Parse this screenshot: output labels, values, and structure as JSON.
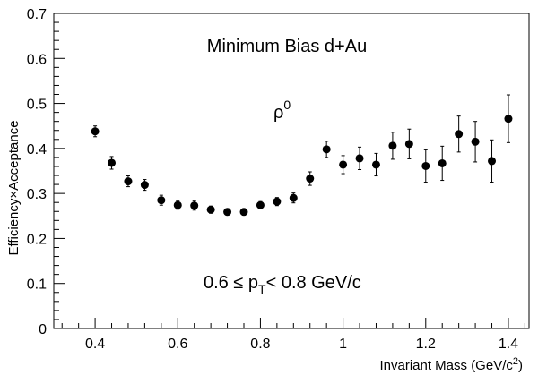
{
  "chart_data": {
    "type": "scatter",
    "xlabel": "Invariant Mass (GeV/c²)",
    "xlabel_main": "Invariant Mass (GeV/c",
    "xlabel_sup": "2",
    "xlabel_end": ")",
    "ylabel": "Efficiency×Acceptance",
    "xlim": [
      0.3,
      1.45
    ],
    "ylim": [
      0,
      0.7
    ],
    "x_ticks": [
      0.4,
      0.6,
      0.8,
      1.0,
      1.2,
      1.4
    ],
    "x_tick_labels": [
      "0.4",
      "0.6",
      "0.8",
      "1",
      "1.2",
      "1.4"
    ],
    "y_ticks": [
      0,
      0.1,
      0.2,
      0.3,
      0.4,
      0.5,
      0.6,
      0.7
    ],
    "y_tick_labels": [
      "0",
      "0.1",
      "0.2",
      "0.3",
      "0.4",
      "0.5",
      "0.6",
      "0.7"
    ],
    "grid": false,
    "annotations": {
      "title": "Minimum Bias d+Au",
      "particle": "ρ",
      "particle_sup": "0",
      "pt_a": "0.6 ≤ p",
      "pt_sub": "T",
      "pt_b": "< 0.8 GeV/c"
    },
    "points": [
      {
        "x": 0.4,
        "y": 0.438,
        "err": 0.012
      },
      {
        "x": 0.44,
        "y": 0.368,
        "err": 0.014
      },
      {
        "x": 0.48,
        "y": 0.327,
        "err": 0.012
      },
      {
        "x": 0.52,
        "y": 0.319,
        "err": 0.012
      },
      {
        "x": 0.56,
        "y": 0.285,
        "err": 0.011
      },
      {
        "x": 0.6,
        "y": 0.274,
        "err": 0.009
      },
      {
        "x": 0.64,
        "y": 0.273,
        "err": 0.01
      },
      {
        "x": 0.68,
        "y": 0.264,
        "err": 0.008
      },
      {
        "x": 0.72,
        "y": 0.259,
        "err": 0.007
      },
      {
        "x": 0.76,
        "y": 0.259,
        "err": 0.007
      },
      {
        "x": 0.8,
        "y": 0.274,
        "err": 0.008
      },
      {
        "x": 0.84,
        "y": 0.282,
        "err": 0.009
      },
      {
        "x": 0.88,
        "y": 0.29,
        "err": 0.011
      },
      {
        "x": 0.92,
        "y": 0.333,
        "err": 0.015
      },
      {
        "x": 0.96,
        "y": 0.398,
        "err": 0.018
      },
      {
        "x": 1.0,
        "y": 0.364,
        "err": 0.02
      },
      {
        "x": 1.04,
        "y": 0.378,
        "err": 0.025
      },
      {
        "x": 1.08,
        "y": 0.364,
        "err": 0.025
      },
      {
        "x": 1.12,
        "y": 0.406,
        "err": 0.03
      },
      {
        "x": 1.16,
        "y": 0.41,
        "err": 0.033
      },
      {
        "x": 1.2,
        "y": 0.361,
        "err": 0.036
      },
      {
        "x": 1.24,
        "y": 0.367,
        "err": 0.038
      },
      {
        "x": 1.28,
        "y": 0.432,
        "err": 0.04
      },
      {
        "x": 1.32,
        "y": 0.415,
        "err": 0.045
      },
      {
        "x": 1.36,
        "y": 0.372,
        "err": 0.047
      },
      {
        "x": 1.4,
        "y": 0.466,
        "err": 0.053
      }
    ]
  }
}
